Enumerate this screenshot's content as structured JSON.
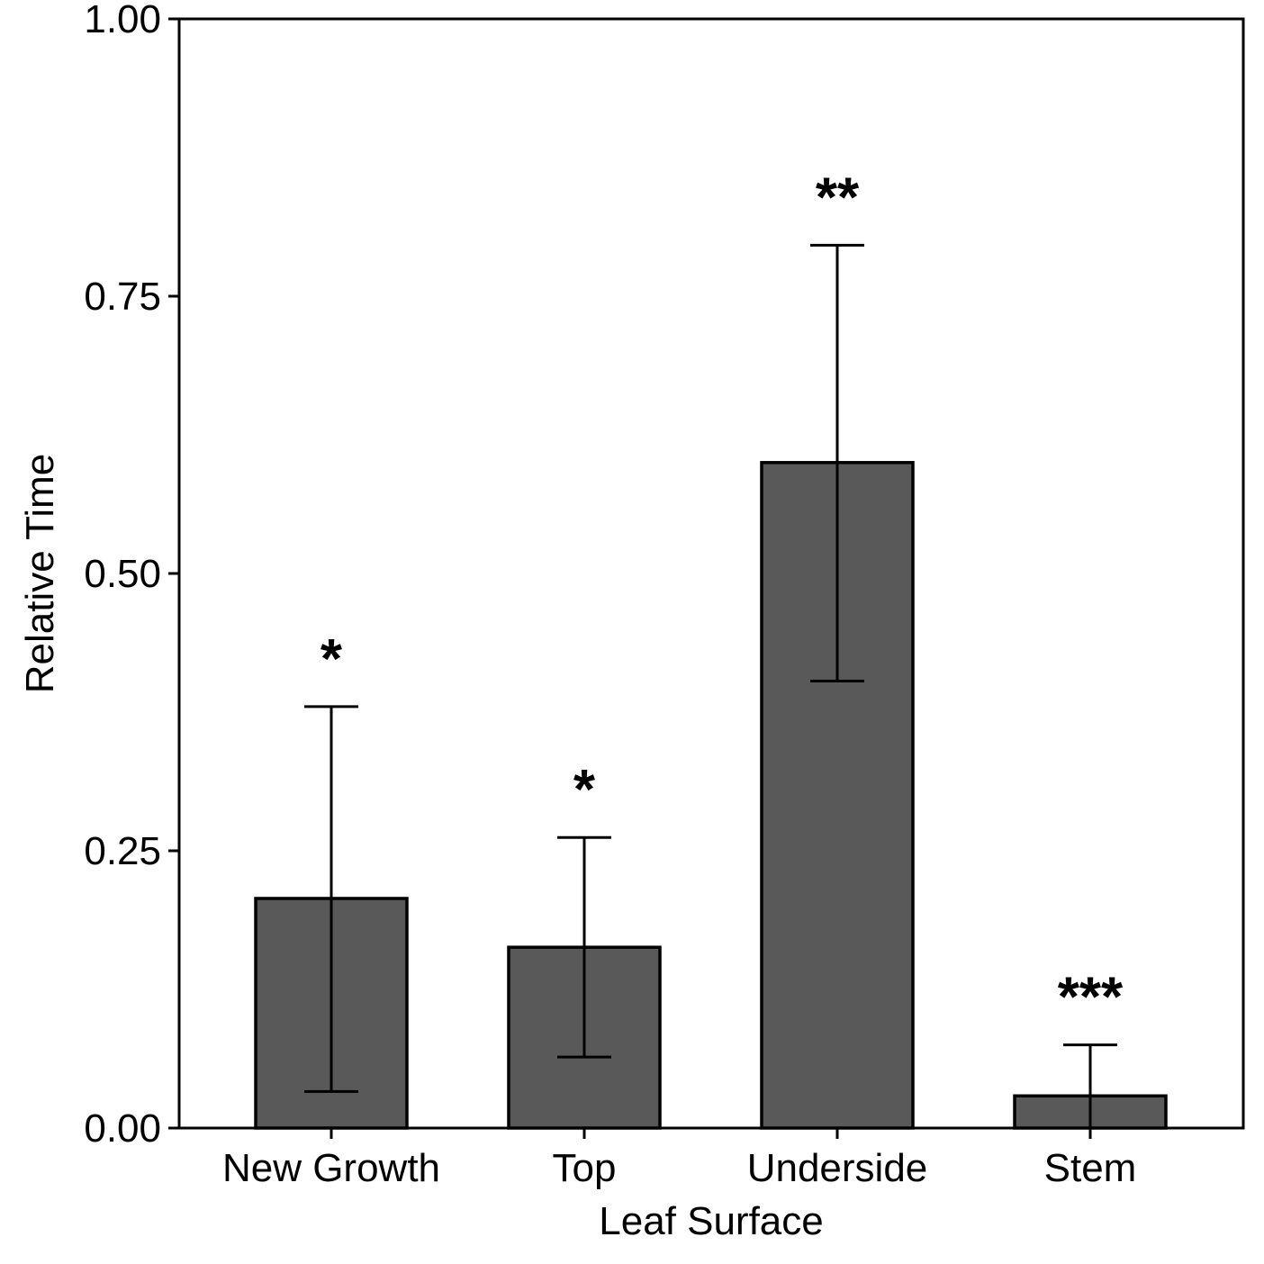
{
  "chart_data": {
    "type": "bar",
    "categories": [
      "New Growth",
      "Top",
      "Underside",
      "Stem"
    ],
    "values": [
      0.207,
      0.163,
      0.6,
      0.029
    ],
    "error_upper": [
      0.38,
      0.262,
      0.796,
      0.075
    ],
    "error_lower": [
      0.033,
      0.064,
      0.403,
      0.0
    ],
    "significance": [
      "*",
      "*",
      "**",
      "***"
    ],
    "xlabel": "Leaf Surface",
    "ylabel": "Relative Time",
    "ylim": [
      0,
      1
    ],
    "yticks": [
      0,
      0.25,
      0.5,
      0.75,
      1
    ],
    "ytick_labels": [
      "0.00",
      "0.25",
      "0.50",
      "0.75",
      "1.00"
    ],
    "grid": false,
    "bar_color": "#595959",
    "outline_color": "#000000"
  }
}
